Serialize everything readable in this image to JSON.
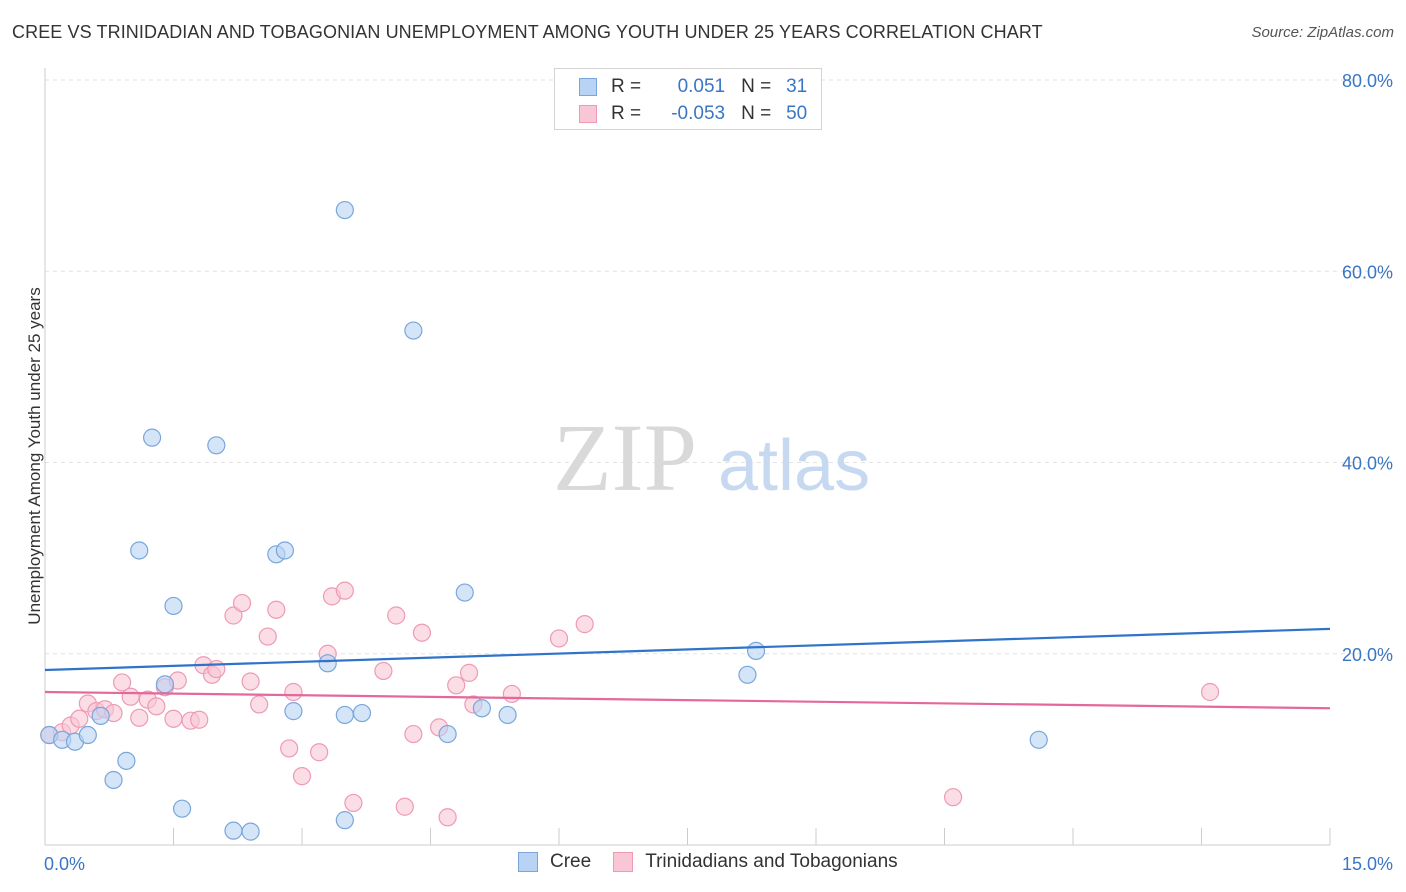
{
  "header": {
    "title": "CREE VS TRINIDADIAN AND TOBAGONIAN UNEMPLOYMENT AMONG YOUTH UNDER 25 YEARS CORRELATION CHART",
    "source": "Source: ZipAtlas.com"
  },
  "watermark": {
    "zip": "ZIP",
    "atlas": "atlas"
  },
  "legend": {
    "r_label": "R =",
    "n_label": "N =",
    "series": [
      {
        "name": "Cree",
        "r": "0.051",
        "n": "31"
      },
      {
        "name": "Trinidadians and Tobagonians",
        "r": "-0.053",
        "n": "50"
      }
    ]
  },
  "colors": {
    "cree_fill": "#b9d3f4",
    "cree_stroke": "#7aa6db",
    "cree_line": "#2f74c9",
    "tt_fill": "#f9c6d6",
    "tt_stroke": "#ee9ab5",
    "tt_line": "#e4699a",
    "axis_tick_text": "#3a76c4",
    "grid": "#e2e2e2"
  },
  "chart_data": {
    "type": "scatter",
    "title": "CREE VS TRINIDADIAN AND TOBAGONIAN UNEMPLOYMENT AMONG YOUTH UNDER 25 YEARS CORRELATION CHART",
    "xlabel": "",
    "ylabel": "Unemployment Among Youth under 25 years",
    "xlim": [
      0,
      15
    ],
    "ylim": [
      0,
      80
    ],
    "x_tick_labels": [
      "0.0%",
      "15.0%"
    ],
    "y_ticks": [
      20,
      40,
      60,
      80
    ],
    "y_tick_labels": [
      "20.0%",
      "40.0%",
      "60.0%",
      "80.0%"
    ],
    "grid": true,
    "series": [
      {
        "name": "Cree",
        "r": 0.051,
        "n": 31,
        "trend": {
          "x": [
            0,
            15
          ],
          "y": [
            18.3,
            22.6
          ]
        },
        "points": [
          {
            "x": 0.05,
            "y": 11.5
          },
          {
            "x": 0.2,
            "y": 11.0
          },
          {
            "x": 0.35,
            "y": 10.8
          },
          {
            "x": 0.5,
            "y": 11.5
          },
          {
            "x": 0.65,
            "y": 13.5
          },
          {
            "x": 0.8,
            "y": 6.8
          },
          {
            "x": 0.95,
            "y": 8.8
          },
          {
            "x": 1.1,
            "y": 30.8
          },
          {
            "x": 1.25,
            "y": 42.6
          },
          {
            "x": 1.5,
            "y": 25.0
          },
          {
            "x": 1.6,
            "y": 3.8
          },
          {
            "x": 1.4,
            "y": 16.8
          },
          {
            "x": 2.0,
            "y": 41.8
          },
          {
            "x": 2.2,
            "y": 1.5
          },
          {
            "x": 2.4,
            "y": 1.4
          },
          {
            "x": 2.7,
            "y": 30.4
          },
          {
            "x": 2.8,
            "y": 30.8
          },
          {
            "x": 2.9,
            "y": 14.0
          },
          {
            "x": 3.3,
            "y": 19.0
          },
          {
            "x": 3.5,
            "y": 2.6
          },
          {
            "x": 3.5,
            "y": 13.6
          },
          {
            "x": 3.5,
            "y": 66.4
          },
          {
            "x": 3.7,
            "y": 13.8
          },
          {
            "x": 4.3,
            "y": 53.8
          },
          {
            "x": 4.7,
            "y": 11.6
          },
          {
            "x": 4.9,
            "y": 26.4
          },
          {
            "x": 5.1,
            "y": 14.3
          },
          {
            "x": 5.4,
            "y": 13.6
          },
          {
            "x": 8.2,
            "y": 17.8
          },
          {
            "x": 8.3,
            "y": 20.3
          },
          {
            "x": 11.6,
            "y": 11.0
          }
        ]
      },
      {
        "name": "Trinidadians and Tobagonians",
        "r": -0.053,
        "n": 50,
        "trend": {
          "x": [
            0,
            15
          ],
          "y": [
            16.0,
            14.3
          ]
        },
        "points": [
          {
            "x": 0.05,
            "y": 11.5
          },
          {
            "x": 0.2,
            "y": 11.8
          },
          {
            "x": 0.3,
            "y": 12.5
          },
          {
            "x": 0.4,
            "y": 13.2
          },
          {
            "x": 0.5,
            "y": 14.8
          },
          {
            "x": 0.6,
            "y": 14.0
          },
          {
            "x": 0.7,
            "y": 14.2
          },
          {
            "x": 0.8,
            "y": 13.8
          },
          {
            "x": 0.9,
            "y": 17.0
          },
          {
            "x": 1.0,
            "y": 15.5
          },
          {
            "x": 1.1,
            "y": 13.3
          },
          {
            "x": 1.2,
            "y": 15.2
          },
          {
            "x": 1.3,
            "y": 14.5
          },
          {
            "x": 1.4,
            "y": 16.5
          },
          {
            "x": 1.5,
            "y": 13.2
          },
          {
            "x": 1.55,
            "y": 17.2
          },
          {
            "x": 1.7,
            "y": 13.0
          },
          {
            "x": 1.8,
            "y": 13.1
          },
          {
            "x": 1.85,
            "y": 18.8
          },
          {
            "x": 1.95,
            "y": 17.8
          },
          {
            "x": 2.0,
            "y": 18.4
          },
          {
            "x": 2.2,
            "y": 24.0
          },
          {
            "x": 2.3,
            "y": 25.3
          },
          {
            "x": 2.4,
            "y": 17.1
          },
          {
            "x": 2.5,
            "y": 14.7
          },
          {
            "x": 2.6,
            "y": 21.8
          },
          {
            "x": 2.7,
            "y": 24.6
          },
          {
            "x": 2.85,
            "y": 10.1
          },
          {
            "x": 2.9,
            "y": 16.0
          },
          {
            "x": 3.0,
            "y": 7.2
          },
          {
            "x": 3.2,
            "y": 9.7
          },
          {
            "x": 3.3,
            "y": 20.0
          },
          {
            "x": 3.35,
            "y": 26.0
          },
          {
            "x": 3.5,
            "y": 26.6
          },
          {
            "x": 3.6,
            "y": 4.4
          },
          {
            "x": 3.95,
            "y": 18.2
          },
          {
            "x": 4.1,
            "y": 24.0
          },
          {
            "x": 4.2,
            "y": 4.0
          },
          {
            "x": 4.3,
            "y": 11.6
          },
          {
            "x": 4.4,
            "y": 22.2
          },
          {
            "x": 4.6,
            "y": 12.3
          },
          {
            "x": 4.7,
            "y": 2.9
          },
          {
            "x": 4.8,
            "y": 16.7
          },
          {
            "x": 4.95,
            "y": 18.0
          },
          {
            "x": 5.0,
            "y": 14.7
          },
          {
            "x": 5.45,
            "y": 15.8
          },
          {
            "x": 6.0,
            "y": 21.6
          },
          {
            "x": 6.3,
            "y": 23.1
          },
          {
            "x": 10.6,
            "y": 5.0
          },
          {
            "x": 13.6,
            "y": 16.0
          }
        ]
      }
    ]
  }
}
